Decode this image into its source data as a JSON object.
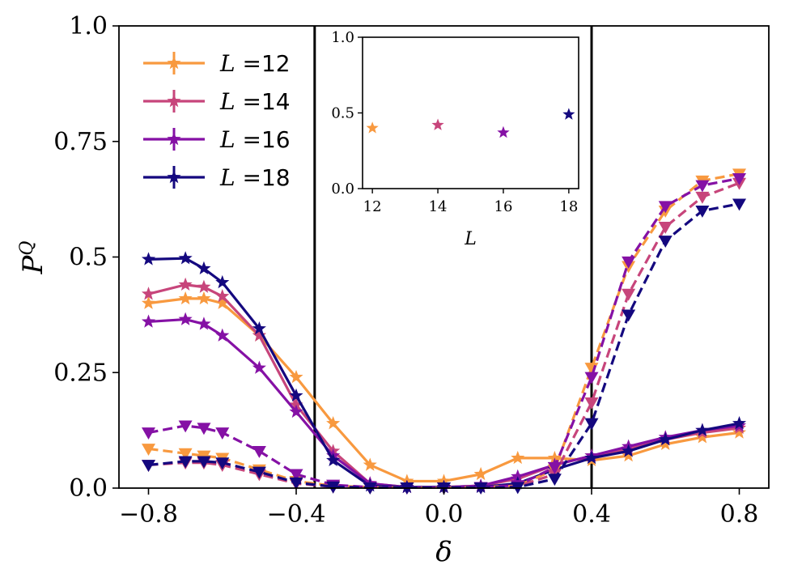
{
  "chart_data": [
    {
      "type": "line",
      "xlabel": "δ",
      "ylabel": "P^Q",
      "xlim": [
        -0.88,
        0.88
      ],
      "ylim": [
        0.0,
        1.0
      ],
      "xticks": [
        -0.8,
        -0.4,
        0.0,
        0.4,
        0.8
      ],
      "xtick_labels": [
        "−0.8",
        "−0.4",
        "0.0",
        "0.4",
        "0.8"
      ],
      "yticks": [
        0.0,
        0.25,
        0.5,
        0.75,
        1.0
      ],
      "ytick_labels": [
        "0.0",
        "0.25",
        "0.5",
        "0.75",
        "1.0"
      ],
      "vlines": [
        -0.35,
        0.4
      ],
      "legend_position": "top-left",
      "series": [
        {
          "name": "L=12",
          "L": "12",
          "color": "#f8993f",
          "style": "solid",
          "marker": "star",
          "x": [
            -0.8,
            -0.7,
            -0.65,
            -0.6,
            -0.5,
            -0.4,
            -0.3,
            -0.2,
            -0.1,
            0.0,
            0.1,
            0.2,
            0.3,
            0.4,
            0.5,
            0.6,
            0.7,
            0.8
          ],
          "y": [
            0.4,
            0.41,
            0.41,
            0.4,
            0.33,
            0.24,
            0.14,
            0.05,
            0.015,
            0.015,
            0.03,
            0.065,
            0.065,
            0.06,
            0.07,
            0.095,
            0.11,
            0.12
          ]
        },
        {
          "name": "L=14",
          "L": "14",
          "color": "#c7457b",
          "style": "solid",
          "marker": "star",
          "x": [
            -0.8,
            -0.7,
            -0.65,
            -0.6,
            -0.5,
            -0.4,
            -0.3,
            -0.2,
            -0.1,
            0.0,
            0.1,
            0.2,
            0.3,
            0.4,
            0.5,
            0.6,
            0.7,
            0.8
          ],
          "y": [
            0.42,
            0.44,
            0.435,
            0.415,
            0.33,
            0.18,
            0.08,
            0.01,
            0.002,
            0.002,
            0.005,
            0.02,
            0.05,
            0.07,
            0.085,
            0.105,
            0.12,
            0.13
          ]
        },
        {
          "name": "L=16",
          "L": "16",
          "color": "#8511a5",
          "style": "solid",
          "marker": "star",
          "x": [
            -0.8,
            -0.7,
            -0.65,
            -0.6,
            -0.5,
            -0.4,
            -0.3,
            -0.2,
            -0.1,
            0.0,
            0.1,
            0.2,
            0.3,
            0.4,
            0.5,
            0.6,
            0.7,
            0.8
          ],
          "y": [
            0.36,
            0.365,
            0.355,
            0.33,
            0.26,
            0.165,
            0.07,
            0.01,
            0.002,
            0.002,
            0.005,
            0.025,
            0.05,
            0.07,
            0.09,
            0.11,
            0.125,
            0.135
          ]
        },
        {
          "name": "L=18",
          "L": "18",
          "color": "#14087f",
          "style": "solid",
          "marker": "star",
          "x": [
            -0.8,
            -0.7,
            -0.65,
            -0.6,
            -0.5,
            -0.4,
            -0.3,
            -0.2,
            -0.1,
            0.0,
            0.1,
            0.2,
            0.3,
            0.4,
            0.5,
            0.6,
            0.7,
            0.8
          ],
          "y": [
            0.495,
            0.497,
            0.475,
            0.445,
            0.345,
            0.2,
            0.06,
            0.005,
            0.002,
            0.002,
            0.002,
            0.01,
            0.04,
            0.065,
            0.08,
            0.105,
            0.125,
            0.14
          ]
        },
        {
          "color": "#f8993f",
          "style": "dashed",
          "marker": "triangle-down",
          "x": [
            -0.8,
            -0.7,
            -0.65,
            -0.6,
            -0.5,
            -0.4,
            -0.3,
            -0.2,
            -0.1,
            0.0,
            0.1,
            0.2,
            0.3,
            0.4,
            0.5,
            0.6,
            0.7,
            0.8
          ],
          "y": [
            0.085,
            0.075,
            0.07,
            0.065,
            0.04,
            0.015,
            0.005,
            0.002,
            0.001,
            0.001,
            0.002,
            0.005,
            0.04,
            0.26,
            0.48,
            0.6,
            0.665,
            0.68
          ]
        },
        {
          "color": "#c7457b",
          "style": "dashed",
          "marker": "triangle-down",
          "x": [
            -0.8,
            -0.7,
            -0.65,
            -0.6,
            -0.5,
            -0.4,
            -0.3,
            -0.2,
            -0.1,
            0.0,
            0.1,
            0.2,
            0.3,
            0.4,
            0.5,
            0.6,
            0.7,
            0.8
          ],
          "y": [
            0.05,
            0.055,
            0.055,
            0.05,
            0.03,
            0.01,
            0.003,
            0.001,
            0.001,
            0.001,
            0.001,
            0.004,
            0.03,
            0.185,
            0.42,
            0.565,
            0.63,
            0.66
          ]
        },
        {
          "color": "#8511a5",
          "style": "dashed",
          "marker": "triangle-down",
          "x": [
            -0.8,
            -0.7,
            -0.65,
            -0.6,
            -0.5,
            -0.4,
            -0.3,
            -0.2,
            -0.1,
            0.0,
            0.1,
            0.2,
            0.3,
            0.4,
            0.5,
            0.6,
            0.7,
            0.8
          ],
          "y": [
            0.12,
            0.135,
            0.13,
            0.12,
            0.08,
            0.03,
            0.007,
            0.002,
            0.001,
            0.001,
            0.002,
            0.006,
            0.045,
            0.24,
            0.49,
            0.61,
            0.655,
            0.67
          ]
        },
        {
          "color": "#14087f",
          "style": "dashed",
          "marker": "triangle-down",
          "x": [
            -0.8,
            -0.7,
            -0.65,
            -0.6,
            -0.5,
            -0.4,
            -0.3,
            -0.2,
            -0.1,
            0.0,
            0.1,
            0.2,
            0.3,
            0.4,
            0.5,
            0.6,
            0.7,
            0.8
          ],
          "y": [
            0.05,
            0.058,
            0.058,
            0.055,
            0.035,
            0.012,
            0.003,
            0.001,
            0.001,
            0.001,
            0.001,
            0.002,
            0.02,
            0.14,
            0.375,
            0.535,
            0.6,
            0.615
          ]
        }
      ]
    },
    {
      "type": "scatter",
      "xlabel": "L",
      "xlim": [
        11.7,
        18.3
      ],
      "ylim": [
        0.0,
        1.0
      ],
      "xticks": [
        12,
        14,
        16,
        18
      ],
      "xtick_labels": [
        "12",
        "14",
        "16",
        "18"
      ],
      "yticks": [
        0.0,
        0.5,
        1.0
      ],
      "ytick_labels": [
        "0.0",
        "0.5",
        "1.0"
      ],
      "points": [
        {
          "x": 12,
          "y": 0.4,
          "color": "#f8993f"
        },
        {
          "x": 14,
          "y": 0.42,
          "color": "#c7457b"
        },
        {
          "x": 16,
          "y": 0.37,
          "color": "#8511a5"
        },
        {
          "x": 18,
          "y": 0.49,
          "color": "#14087f"
        }
      ]
    }
  ]
}
